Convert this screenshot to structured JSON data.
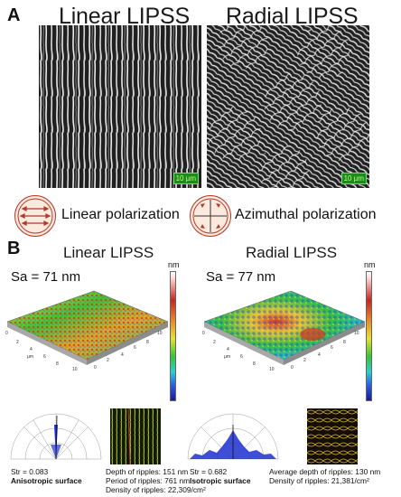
{
  "panel_a": {
    "letter": "A",
    "left_title": "Linear LIPSS",
    "right_title": "Radial LIPSS",
    "left_scalebar": "10 µm",
    "right_scalebar": "10 µm",
    "linear_polarization": "Linear polarization",
    "azimuthal_polarization": "Azimuthal polarization"
  },
  "panel_b": {
    "letter": "B",
    "left_title": "Linear LIPSS",
    "right_title": "Radial LIPSS",
    "left_sa": "Sa = 71 nm",
    "right_sa": "Sa = 77 nm",
    "colorbar_unit": "nm",
    "axis_unit": "µm",
    "left": {
      "str": "Str = 0.083",
      "surface": "Anisotropic surface",
      "line1": "Depth of ripples: 151 nm",
      "line2": "Period of ripples: 761 nm",
      "line3": "Density of ripples: 22,309/cm²"
    },
    "right": {
      "str": "Str = 0.682",
      "surface": "Isotropic surface",
      "line1": "Average depth of ripples: 130 nm",
      "line2": "Density of ripples: 21,381/cm²"
    }
  },
  "colors": {
    "scalebar_bg": "#1e8a1e",
    "polarization_icon": "#b43a2a",
    "polar_plot_fill": "#1d2fd0"
  }
}
